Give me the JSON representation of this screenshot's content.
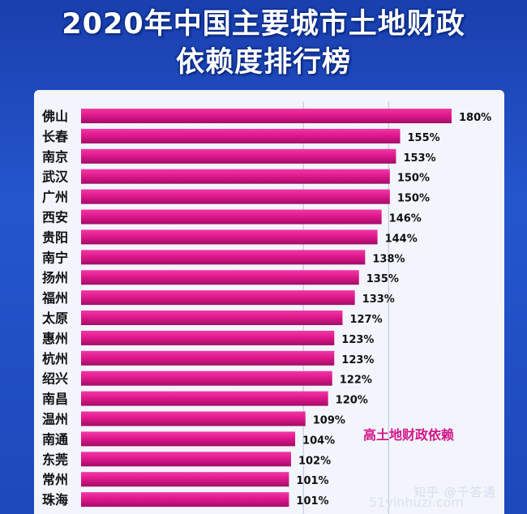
{
  "header": {
    "title_line1": "2020年中国主要城市土地财政",
    "title_line2": "依赖度排行榜"
  },
  "watermark": {
    "text": "知乎 @千答通",
    "text2": "51yinhuzi.com"
  },
  "chart_data": {
    "type": "bar",
    "orientation": "horizontal",
    "title": "2020年中国主要城市土地财政依赖度排行榜",
    "categories": [
      "佛山",
      "长春",
      "南京",
      "武汉",
      "广州",
      "西安",
      "贵阳",
      "南宁",
      "扬州",
      "福州",
      "太原",
      "惠州",
      "杭州",
      "绍兴",
      "南昌",
      "温州",
      "南通",
      "东莞",
      "常州",
      "珠海"
    ],
    "values": [
      180,
      155,
      153,
      150,
      150,
      146,
      144,
      138,
      135,
      133,
      127,
      123,
      123,
      122,
      120,
      109,
      104,
      102,
      101,
      101
    ],
    "value_labels": [
      "180%",
      "155%",
      "153%",
      "150%",
      "150%",
      "146%",
      "144%",
      "138%",
      "135%",
      "133%",
      "127%",
      "123%",
      "123%",
      "122%",
      "120%",
      "109%",
      "104%",
      "102%",
      "101%",
      "101%"
    ],
    "value_unit": "%",
    "xlim": [
      0,
      180
    ],
    "grid": true,
    "annotation": "高土地财政依赖",
    "colors": {
      "bar": "#e0188c",
      "bar_dark": "#a30d68",
      "label": "#111111",
      "annotation": "#d4148a",
      "grid": "#b9c3dc"
    }
  }
}
